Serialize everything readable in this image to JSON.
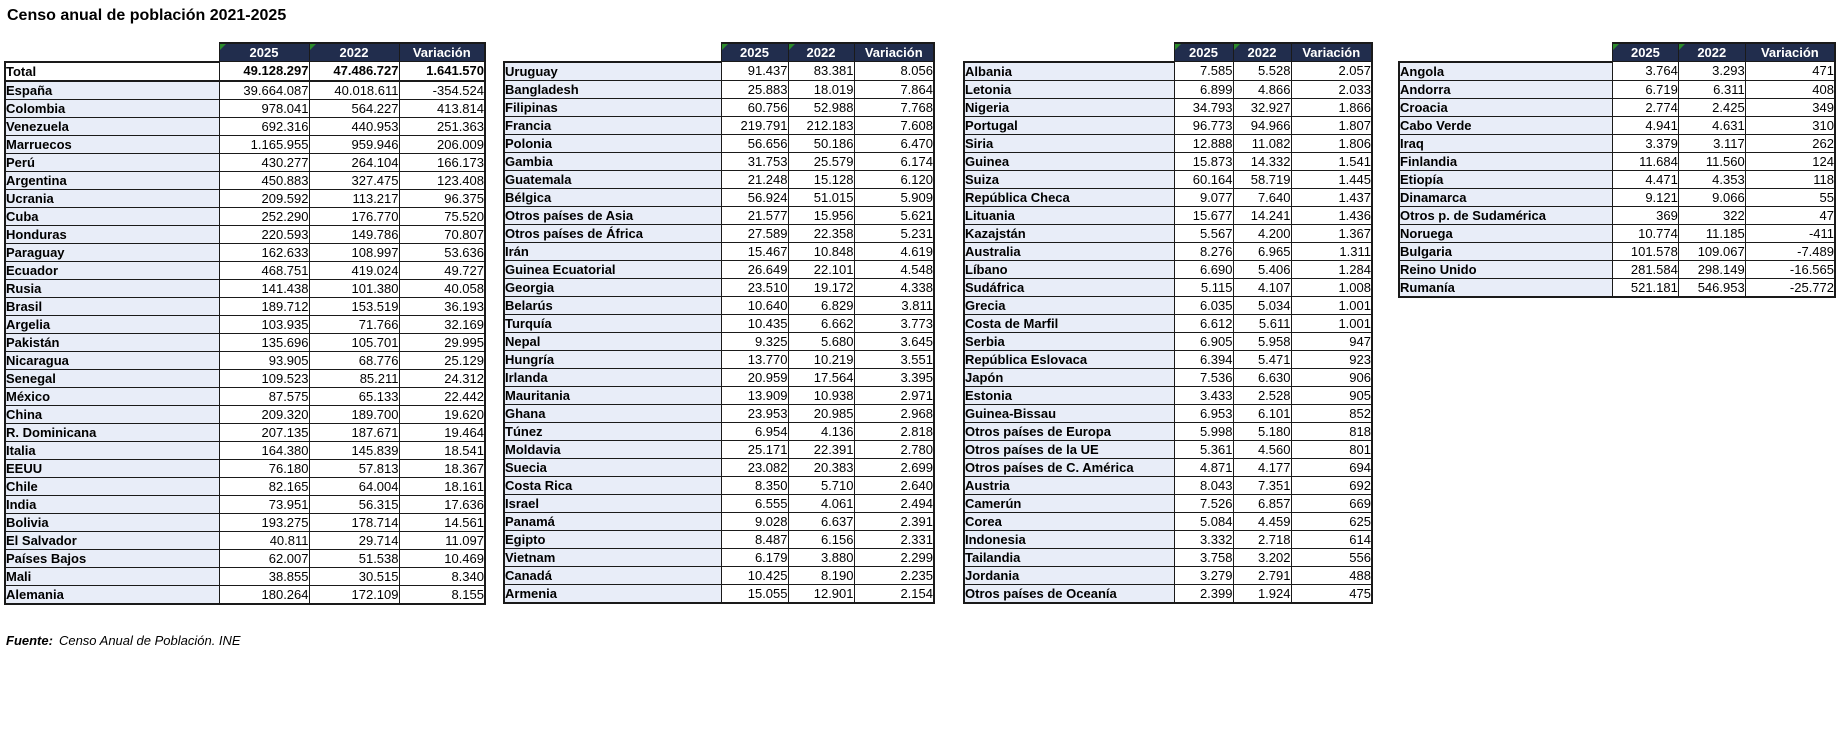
{
  "title": "Censo anual de población 2021-2025",
  "footer": {
    "label": "Fuente:",
    "text": "Censo Anual de Población. INE"
  },
  "colors": {
    "header_bg": "#212d4d",
    "header_text": "#ffffff",
    "label_bg": "#e8edf8",
    "grid": "#1a1a1a",
    "triangle": "#2c8a2c"
  },
  "columns": [
    "2025",
    "2022",
    "Variación"
  ],
  "tables": [
    {
      "rows": [
        [
          "Total",
          "49.128.297",
          "47.486.727",
          "1.641.570"
        ],
        [
          "España",
          "39.664.087",
          "40.018.611",
          "-354.524"
        ],
        [
          "Colombia",
          "978.041",
          "564.227",
          "413.814"
        ],
        [
          "Venezuela",
          "692.316",
          "440.953",
          "251.363"
        ],
        [
          "Marruecos",
          "1.165.955",
          "959.946",
          "206.009"
        ],
        [
          "Perú",
          "430.277",
          "264.104",
          "166.173"
        ],
        [
          "Argentina",
          "450.883",
          "327.475",
          "123.408"
        ],
        [
          "Ucrania",
          "209.592",
          "113.217",
          "96.375"
        ],
        [
          "Cuba",
          "252.290",
          "176.770",
          "75.520"
        ],
        [
          "Honduras",
          "220.593",
          "149.786",
          "70.807"
        ],
        [
          "Paraguay",
          "162.633",
          "108.997",
          "53.636"
        ],
        [
          "Ecuador",
          "468.751",
          "419.024",
          "49.727"
        ],
        [
          "Rusia",
          "141.438",
          "101.380",
          "40.058"
        ],
        [
          "Brasil",
          "189.712",
          "153.519",
          "36.193"
        ],
        [
          "Argelia",
          "103.935",
          "71.766",
          "32.169"
        ],
        [
          "Pakistán",
          "135.696",
          "105.701",
          "29.995"
        ],
        [
          "Nicaragua",
          "93.905",
          "68.776",
          "25.129"
        ],
        [
          "Senegal",
          "109.523",
          "85.211",
          "24.312"
        ],
        [
          "México",
          "87.575",
          "65.133",
          "22.442"
        ],
        [
          "China",
          "209.320",
          "189.700",
          "19.620"
        ],
        [
          "R. Dominicana",
          "207.135",
          "187.671",
          "19.464"
        ],
        [
          "Italia",
          "164.380",
          "145.839",
          "18.541"
        ],
        [
          "EEUU",
          "76.180",
          "57.813",
          "18.367"
        ],
        [
          "Chile",
          "82.165",
          "64.004",
          "18.161"
        ],
        [
          "India",
          "73.951",
          "56.315",
          "17.636"
        ],
        [
          "Bolivia",
          "193.275",
          "178.714",
          "14.561"
        ],
        [
          "El Salvador",
          "40.811",
          "29.714",
          "11.097"
        ],
        [
          "Países Bajos",
          "62.007",
          "51.538",
          "10.469"
        ],
        [
          "Mali",
          "38.855",
          "30.515",
          "8.340"
        ],
        [
          "Alemania",
          "180.264",
          "172.109",
          "8.155"
        ]
      ]
    },
    {
      "rows": [
        [
          "Uruguay",
          "91.437",
          "83.381",
          "8.056"
        ],
        [
          "Bangladesh",
          "25.883",
          "18.019",
          "7.864"
        ],
        [
          "Filipinas",
          "60.756",
          "52.988",
          "7.768"
        ],
        [
          "Francia",
          "219.791",
          "212.183",
          "7.608"
        ],
        [
          "Polonia",
          "56.656",
          "50.186",
          "6.470"
        ],
        [
          "Gambia",
          "31.753",
          "25.579",
          "6.174"
        ],
        [
          "Guatemala",
          "21.248",
          "15.128",
          "6.120"
        ],
        [
          "Bélgica",
          "56.924",
          "51.015",
          "5.909"
        ],
        [
          "Otros países de Asia",
          "21.577",
          "15.956",
          "5.621"
        ],
        [
          "Otros países de África",
          "27.589",
          "22.358",
          "5.231"
        ],
        [
          "Irán",
          "15.467",
          "10.848",
          "4.619"
        ],
        [
          "Guinea Ecuatorial",
          "26.649",
          "22.101",
          "4.548"
        ],
        [
          "Georgia",
          "23.510",
          "19.172",
          "4.338"
        ],
        [
          "Belarús",
          "10.640",
          "6.829",
          "3.811"
        ],
        [
          "Turquía",
          "10.435",
          "6.662",
          "3.773"
        ],
        [
          "Nepal",
          "9.325",
          "5.680",
          "3.645"
        ],
        [
          "Hungría",
          "13.770",
          "10.219",
          "3.551"
        ],
        [
          "Irlanda",
          "20.959",
          "17.564",
          "3.395"
        ],
        [
          "Mauritania",
          "13.909",
          "10.938",
          "2.971"
        ],
        [
          "Ghana",
          "23.953",
          "20.985",
          "2.968"
        ],
        [
          "Túnez",
          "6.954",
          "4.136",
          "2.818"
        ],
        [
          "Moldavia",
          "25.171",
          "22.391",
          "2.780"
        ],
        [
          "Suecia",
          "23.082",
          "20.383",
          "2.699"
        ],
        [
          "Costa Rica",
          "8.350",
          "5.710",
          "2.640"
        ],
        [
          "Israel",
          "6.555",
          "4.061",
          "2.494"
        ],
        [
          "Panamá",
          "9.028",
          "6.637",
          "2.391"
        ],
        [
          "Egipto",
          "8.487",
          "6.156",
          "2.331"
        ],
        [
          "Vietnam",
          "6.179",
          "3.880",
          "2.299"
        ],
        [
          "Canadá",
          "10.425",
          "8.190",
          "2.235"
        ],
        [
          "Armenia",
          "15.055",
          "12.901",
          "2.154"
        ]
      ]
    },
    {
      "rows": [
        [
          "Albania",
          "7.585",
          "5.528",
          "2.057"
        ],
        [
          "Letonia",
          "6.899",
          "4.866",
          "2.033"
        ],
        [
          "Nigeria",
          "34.793",
          "32.927",
          "1.866"
        ],
        [
          "Portugal",
          "96.773",
          "94.966",
          "1.807"
        ],
        [
          "Siria",
          "12.888",
          "11.082",
          "1.806"
        ],
        [
          "Guinea",
          "15.873",
          "14.332",
          "1.541"
        ],
        [
          "Suiza",
          "60.164",
          "58.719",
          "1.445"
        ],
        [
          "República Checa",
          "9.077",
          "7.640",
          "1.437"
        ],
        [
          "Lituania",
          "15.677",
          "14.241",
          "1.436"
        ],
        [
          "Kazajstán",
          "5.567",
          "4.200",
          "1.367"
        ],
        [
          "Australia",
          "8.276",
          "6.965",
          "1.311"
        ],
        [
          "Líbano",
          "6.690",
          "5.406",
          "1.284"
        ],
        [
          "Sudáfrica",
          "5.115",
          "4.107",
          "1.008"
        ],
        [
          "Grecia",
          "6.035",
          "5.034",
          "1.001"
        ],
        [
          "Costa de Marfil",
          "6.612",
          "5.611",
          "1.001"
        ],
        [
          "Serbia",
          "6.905",
          "5.958",
          "947"
        ],
        [
          "República Eslovaca",
          "6.394",
          "5.471",
          "923"
        ],
        [
          "Japón",
          "7.536",
          "6.630",
          "906"
        ],
        [
          "Estonia",
          "3.433",
          "2.528",
          "905"
        ],
        [
          "Guinea-Bissau",
          "6.953",
          "6.101",
          "852"
        ],
        [
          "Otros países de Europa",
          "5.998",
          "5.180",
          "818"
        ],
        [
          "Otros países de la UE",
          "5.361",
          "4.560",
          "801"
        ],
        [
          "Otros países de C. América",
          "4.871",
          "4.177",
          "694"
        ],
        [
          "Austria",
          "8.043",
          "7.351",
          "692"
        ],
        [
          "Camerún",
          "7.526",
          "6.857",
          "669"
        ],
        [
          "Corea",
          "5.084",
          "4.459",
          "625"
        ],
        [
          "Indonesia",
          "3.332",
          "2.718",
          "614"
        ],
        [
          "Tailandia",
          "3.758",
          "3.202",
          "556"
        ],
        [
          "Jordania",
          "3.279",
          "2.791",
          "488"
        ],
        [
          "Otros países de Oceanía",
          "2.399",
          "1.924",
          "475"
        ]
      ]
    },
    {
      "rows": [
        [
          "Angola",
          "3.764",
          "3.293",
          "471"
        ],
        [
          "Andorra",
          "6.719",
          "6.311",
          "408"
        ],
        [
          "Croacia",
          "2.774",
          "2.425",
          "349"
        ],
        [
          "Cabo Verde",
          "4.941",
          "4.631",
          "310"
        ],
        [
          "Iraq",
          "3.379",
          "3.117",
          "262"
        ],
        [
          "Finlandia",
          "11.684",
          "11.560",
          "124"
        ],
        [
          "Etiopía",
          "4.471",
          "4.353",
          "118"
        ],
        [
          "Dinamarca",
          "9.121",
          "9.066",
          "55"
        ],
        [
          "Otros p. de Sudamérica",
          "369",
          "322",
          "47"
        ],
        [
          "Noruega",
          "10.774",
          "11.185",
          "-411"
        ],
        [
          "Bulgaria",
          "101.578",
          "109.067",
          "-7.489"
        ],
        [
          "Reino Unido",
          "281.584",
          "298.149",
          "-16.565"
        ],
        [
          "Rumanía",
          "521.181",
          "546.953",
          "-25.772"
        ]
      ]
    }
  ]
}
